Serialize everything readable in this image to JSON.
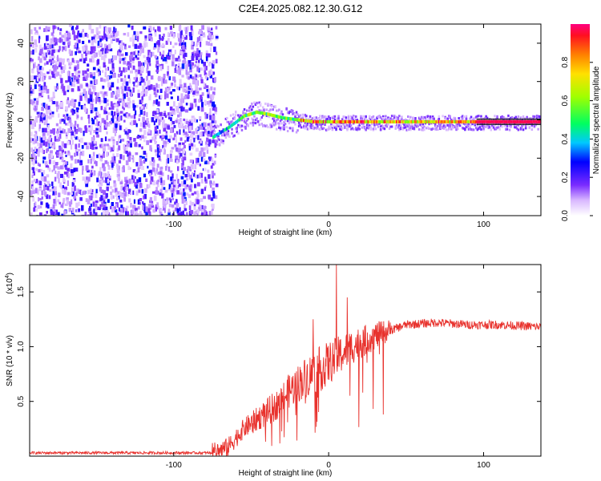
{
  "title": "C2E4.2025.082.12.30.G12",
  "chart_data": [
    {
      "type": "heatmap",
      "xlabel": "Height of straight line (km)",
      "ylabel": "Frequency (Hz)",
      "xlim": [
        -193,
        137
      ],
      "ylim": [
        -50,
        50
      ],
      "xticks": [
        -100,
        0,
        100
      ],
      "yticks": [
        -40,
        -20,
        0,
        20,
        40
      ],
      "colorbar": {
        "label": "Normalized spectral amplitude",
        "range": [
          0,
          1
        ],
        "ticks": [
          0.0,
          0.2,
          0.4,
          0.6,
          0.8
        ]
      },
      "noise_region_x": [
        -193,
        -73
      ],
      "signal_track": [
        {
          "x": -75,
          "freq": -9
        },
        {
          "x": -65,
          "freq": -4
        },
        {
          "x": -55,
          "freq": 2
        },
        {
          "x": -47,
          "freq": 4
        },
        {
          "x": -40,
          "freq": 3
        },
        {
          "x": -30,
          "freq": 1
        },
        {
          "x": -20,
          "freq": 0
        },
        {
          "x": -10,
          "freq": -1
        },
        {
          "x": 0,
          "freq": -1
        },
        {
          "x": 20,
          "freq": -1
        },
        {
          "x": 50,
          "freq": -1
        },
        {
          "x": 80,
          "freq": -1
        },
        {
          "x": 95,
          "freq": -1
        },
        {
          "x": 137,
          "freq": -1
        }
      ]
    },
    {
      "type": "line",
      "xlabel": "Height of straight line (km)",
      "ylabel": "SNR (10 * v/v)",
      "y_multiplier": "(x10",
      "y_multiplier_exp": "4",
      "xlim": [
        -193,
        137
      ],
      "ylim": [
        0,
        1.75
      ],
      "xticks": [
        -100,
        0,
        100
      ],
      "yticks": [
        0.5,
        1.0,
        1.5
      ],
      "ytick_labels": [
        "0.5",
        "1.0",
        "1.5"
      ],
      "series_color": "#e8322d",
      "trend": [
        {
          "x": -193,
          "y": 0.03
        },
        {
          "x": -75,
          "y": 0.03
        },
        {
          "x": -65,
          "y": 0.08
        },
        {
          "x": -55,
          "y": 0.25
        },
        {
          "x": -45,
          "y": 0.35
        },
        {
          "x": -35,
          "y": 0.45
        },
        {
          "x": -25,
          "y": 0.6
        },
        {
          "x": -15,
          "y": 0.72
        },
        {
          "x": -5,
          "y": 0.8
        },
        {
          "x": 5,
          "y": 0.9
        },
        {
          "x": 15,
          "y": 1.0
        },
        {
          "x": 30,
          "y": 1.1
        },
        {
          "x": 50,
          "y": 1.2
        },
        {
          "x": 70,
          "y": 1.22
        },
        {
          "x": 90,
          "y": 1.2
        },
        {
          "x": 110,
          "y": 1.2
        },
        {
          "x": 137,
          "y": 1.18
        }
      ],
      "peaks": [
        {
          "x": -35,
          "y": 0.55
        },
        {
          "x": -10,
          "y": 1.25
        },
        {
          "x": 5,
          "y": 1.75
        },
        {
          "x": 12,
          "y": 1.45
        }
      ]
    }
  ]
}
